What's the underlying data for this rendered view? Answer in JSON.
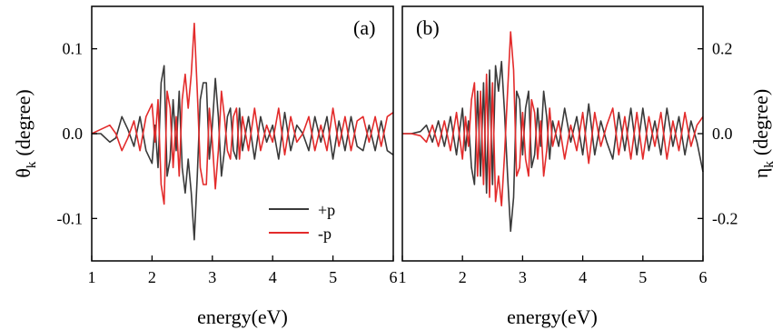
{
  "figure": {
    "xlabel": "energy(eV)",
    "colors": {
      "plus": "#3a3a3a",
      "minus": "#e32b2b",
      "axis": "#000000"
    }
  },
  "chart_data": [
    {
      "type": "line",
      "panel_label": "(a)",
      "ylabel_symbol": "θ",
      "ylabel_subscript": "k",
      "ylabel_unit": "(degree)",
      "xlabel": "energy(eV)",
      "xlim": [
        1,
        6
      ],
      "ylim": [
        -0.15,
        0.15
      ],
      "xticks": [
        1,
        2,
        3,
        4,
        5,
        6
      ],
      "xtick_labels": [
        "1",
        "2",
        "3",
        "4",
        "5",
        "6"
      ],
      "yticks": [
        0.1,
        0.0,
        -0.1
      ],
      "ytick_labels": [
        "0.1",
        "0.0",
        "-0.1"
      ],
      "yaxis_side": "left",
      "legend": {
        "placement": "bottom-center",
        "entries": [
          "+p",
          "-p"
        ]
      },
      "series": [
        {
          "name": "+p",
          "color": "#3a3a3a",
          "x": [
            1.0,
            1.15,
            1.3,
            1.4,
            1.5,
            1.6,
            1.7,
            1.8,
            1.9,
            2.0,
            2.05,
            2.1,
            2.15,
            2.2,
            2.25,
            2.3,
            2.35,
            2.4,
            2.45,
            2.5,
            2.55,
            2.6,
            2.65,
            2.7,
            2.75,
            2.8,
            2.85,
            2.9,
            2.95,
            3.0,
            3.05,
            3.1,
            3.15,
            3.2,
            3.25,
            3.3,
            3.35,
            3.4,
            3.45,
            3.5,
            3.6,
            3.7,
            3.8,
            3.9,
            4.0,
            4.1,
            4.2,
            4.3,
            4.4,
            4.5,
            4.6,
            4.7,
            4.8,
            4.9,
            5.0,
            5.1,
            5.2,
            5.3,
            5.4,
            5.5,
            5.6,
            5.7,
            5.8,
            5.9,
            6.0
          ],
          "values": [
            0.0,
            0.0,
            -0.01,
            -0.005,
            0.02,
            0.005,
            -0.015,
            0.02,
            -0.02,
            -0.035,
            0.01,
            -0.04,
            0.06,
            0.08,
            -0.05,
            -0.03,
            0.04,
            -0.02,
            0.05,
            -0.04,
            -0.07,
            -0.03,
            -0.07,
            -0.125,
            -0.05,
            0.04,
            0.06,
            0.06,
            -0.03,
            0.01,
            0.065,
            0.02,
            -0.05,
            -0.02,
            0.02,
            0.03,
            -0.02,
            -0.03,
            0.03,
            -0.02,
            0.02,
            -0.03,
            0.02,
            -0.01,
            0.01,
            -0.03,
            0.025,
            -0.02,
            0.01,
            0.0,
            -0.02,
            0.02,
            -0.01,
            0.02,
            -0.03,
            0.015,
            -0.02,
            0.02,
            -0.015,
            -0.02,
            0.01,
            -0.02,
            0.015,
            -0.02,
            -0.025
          ]
        },
        {
          "name": "-p",
          "color": "#e32b2b",
          "x": [
            1.0,
            1.15,
            1.3,
            1.4,
            1.5,
            1.6,
            1.7,
            1.8,
            1.9,
            2.0,
            2.05,
            2.1,
            2.15,
            2.2,
            2.25,
            2.3,
            2.35,
            2.4,
            2.45,
            2.5,
            2.55,
            2.6,
            2.65,
            2.7,
            2.75,
            2.8,
            2.85,
            2.9,
            2.95,
            3.0,
            3.05,
            3.1,
            3.15,
            3.2,
            3.25,
            3.3,
            3.35,
            3.4,
            3.45,
            3.5,
            3.6,
            3.7,
            3.8,
            3.9,
            4.0,
            4.1,
            4.2,
            4.3,
            4.4,
            4.5,
            4.6,
            4.7,
            4.8,
            4.9,
            5.0,
            5.1,
            5.2,
            5.3,
            5.4,
            5.5,
            5.6,
            5.7,
            5.8,
            5.9,
            6.0
          ],
          "values": [
            0.0,
            0.005,
            0.01,
            0.0,
            -0.02,
            -0.005,
            0.015,
            -0.02,
            0.02,
            0.035,
            -0.01,
            0.04,
            -0.06,
            -0.083,
            0.05,
            0.03,
            -0.04,
            0.02,
            -0.05,
            0.04,
            0.07,
            0.03,
            0.07,
            0.13,
            0.05,
            -0.04,
            -0.06,
            -0.06,
            0.03,
            -0.01,
            -0.065,
            -0.02,
            0.05,
            0.02,
            -0.02,
            -0.03,
            0.02,
            0.03,
            -0.03,
            0.02,
            -0.02,
            0.03,
            -0.02,
            0.01,
            -0.01,
            0.03,
            -0.025,
            0.02,
            -0.01,
            0.0,
            0.02,
            -0.02,
            0.01,
            -0.02,
            0.03,
            -0.015,
            0.02,
            -0.02,
            0.015,
            0.02,
            -0.01,
            0.02,
            -0.015,
            0.02,
            0.025
          ]
        }
      ]
    },
    {
      "type": "line",
      "panel_label": "(b)",
      "ylabel_symbol": "η",
      "ylabel_subscript": "k",
      "ylabel_unit": "(degree)",
      "xlabel": "energy(eV)",
      "xlim": [
        1,
        6
      ],
      "ylim": [
        -0.3,
        0.3
      ],
      "xticks": [
        1,
        2,
        3,
        4,
        5,
        6
      ],
      "xtick_labels": [
        "1",
        "2",
        "3",
        "4",
        "5",
        "6"
      ],
      "yticks": [
        0.2,
        0.0,
        -0.2
      ],
      "ytick_labels": [
        "0.2",
        "0.0",
        "-0.2"
      ],
      "yaxis_side": "right",
      "series": [
        {
          "name": "+p",
          "color": "#3a3a3a",
          "x": [
            1.0,
            1.15,
            1.3,
            1.4,
            1.5,
            1.6,
            1.7,
            1.8,
            1.9,
            2.0,
            2.05,
            2.1,
            2.15,
            2.2,
            2.25,
            2.3,
            2.35,
            2.4,
            2.45,
            2.5,
            2.55,
            2.6,
            2.65,
            2.7,
            2.75,
            2.8,
            2.85,
            2.9,
            2.95,
            3.0,
            3.05,
            3.1,
            3.15,
            3.2,
            3.25,
            3.3,
            3.35,
            3.4,
            3.45,
            3.5,
            3.6,
            3.7,
            3.8,
            3.9,
            4.0,
            4.1,
            4.2,
            4.3,
            4.4,
            4.5,
            4.6,
            4.7,
            4.8,
            4.9,
            5.0,
            5.1,
            5.2,
            5.3,
            5.4,
            5.5,
            5.6,
            5.7,
            5.8,
            5.9,
            6.0
          ],
          "values": [
            0.0,
            0.0,
            0.005,
            0.02,
            -0.02,
            0.03,
            -0.03,
            0.04,
            -0.05,
            0.06,
            -0.04,
            0.03,
            -0.08,
            -0.12,
            0.1,
            -0.1,
            0.12,
            -0.14,
            0.15,
            -0.12,
            0.16,
            0.1,
            0.17,
            0.05,
            -0.1,
            -0.23,
            -0.15,
            0.1,
            0.08,
            -0.05,
            0.06,
            0.1,
            -0.08,
            -0.05,
            0.06,
            -0.03,
            0.1,
            0.04,
            -0.06,
            0.03,
            -0.03,
            0.06,
            -0.02,
            0.04,
            -0.05,
            0.07,
            -0.05,
            0.03,
            -0.02,
            -0.06,
            0.05,
            -0.04,
            0.06,
            -0.05,
            0.06,
            -0.04,
            0.03,
            -0.05,
            0.06,
            -0.03,
            0.04,
            -0.05,
            0.03,
            -0.02,
            -0.09
          ]
        },
        {
          "name": "-p",
          "color": "#e32b2b",
          "x": [
            1.0,
            1.15,
            1.3,
            1.4,
            1.5,
            1.6,
            1.7,
            1.8,
            1.9,
            2.0,
            2.05,
            2.1,
            2.15,
            2.2,
            2.25,
            2.3,
            2.35,
            2.4,
            2.45,
            2.5,
            2.55,
            2.6,
            2.65,
            2.7,
            2.75,
            2.8,
            2.85,
            2.9,
            2.95,
            3.0,
            3.05,
            3.1,
            3.15,
            3.2,
            3.25,
            3.3,
            3.35,
            3.4,
            3.45,
            3.5,
            3.6,
            3.7,
            3.8,
            3.9,
            4.0,
            4.1,
            4.2,
            4.3,
            4.4,
            4.5,
            4.6,
            4.7,
            4.8,
            4.9,
            5.0,
            5.1,
            5.2,
            5.3,
            5.4,
            5.5,
            5.6,
            5.7,
            5.8,
            5.9,
            6.0
          ],
          "values": [
            0.0,
            0.0,
            -0.005,
            -0.02,
            0.02,
            -0.03,
            0.03,
            -0.04,
            0.05,
            -0.06,
            0.04,
            -0.03,
            0.08,
            0.12,
            -0.1,
            0.1,
            -0.12,
            0.14,
            -0.15,
            0.12,
            -0.16,
            -0.1,
            -0.17,
            -0.05,
            0.1,
            0.24,
            0.15,
            -0.1,
            -0.08,
            0.05,
            -0.06,
            -0.1,
            0.08,
            0.05,
            -0.06,
            0.03,
            -0.1,
            -0.04,
            0.06,
            -0.03,
            0.03,
            -0.06,
            0.02,
            -0.04,
            0.05,
            -0.07,
            0.05,
            -0.03,
            0.02,
            0.06,
            -0.05,
            0.04,
            -0.06,
            0.05,
            -0.06,
            0.04,
            -0.03,
            0.05,
            -0.06,
            0.03,
            -0.04,
            0.05,
            -0.03,
            0.02,
            0.04
          ]
        }
      ]
    }
  ]
}
